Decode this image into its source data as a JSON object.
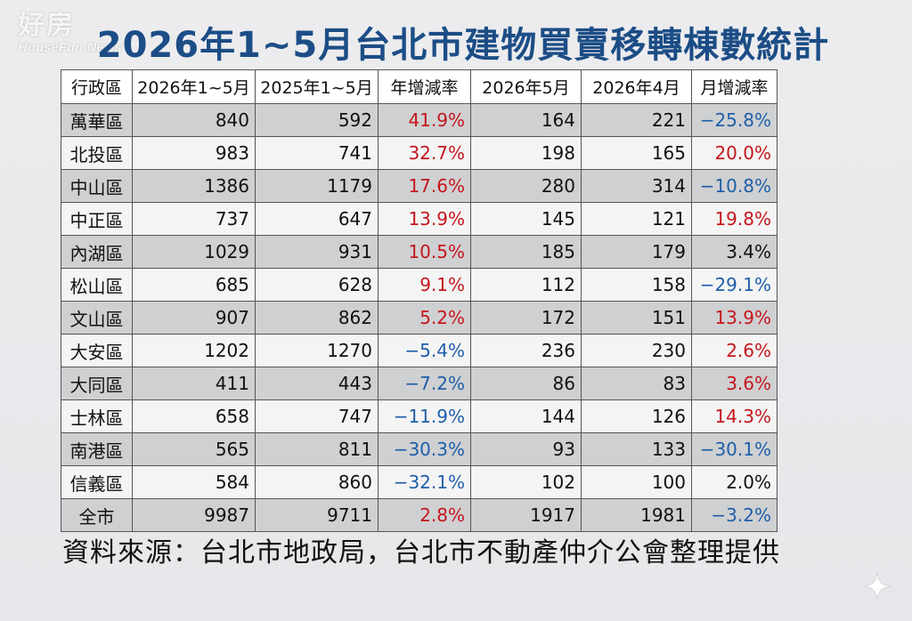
{
  "watermark": {
    "main": "好房",
    "sub": "HouseFun News"
  },
  "title": "2026年1~5月台北市建物買賣移轉棟數統計",
  "source": "資料來源：台北市地政局，台北市不動產仲介公會整理提供",
  "colors": {
    "title": "#1c4d86",
    "increase": "#c4161c",
    "decrease": "#1f5fa8",
    "shaded_row": "#cfd0d2"
  },
  "chart_data": {
    "type": "table",
    "columns": [
      "行政區",
      "2026年1~5月",
      "2025年1~5月",
      "年增減率",
      "2026年5月",
      "2026年4月",
      "月增減率"
    ],
    "rows": [
      {
        "district": "萬華區",
        "y2026": "840",
        "y2025": "592",
        "yoy": "41.9%",
        "may": "164",
        "apr": "221",
        "mom": "−25.8%",
        "yoy_dir": "pos",
        "mom_dir": "neg"
      },
      {
        "district": "北投區",
        "y2026": "983",
        "y2025": "741",
        "yoy": "32.7%",
        "may": "198",
        "apr": "165",
        "mom": "20.0%",
        "yoy_dir": "pos",
        "mom_dir": "pos"
      },
      {
        "district": "中山區",
        "y2026": "1386",
        "y2025": "1179",
        "yoy": "17.6%",
        "may": "280",
        "apr": "314",
        "mom": "−10.8%",
        "yoy_dir": "pos",
        "mom_dir": "neg"
      },
      {
        "district": "中正區",
        "y2026": "737",
        "y2025": "647",
        "yoy": "13.9%",
        "may": "145",
        "apr": "121",
        "mom": "19.8%",
        "yoy_dir": "pos",
        "mom_dir": "pos"
      },
      {
        "district": "內湖區",
        "y2026": "1029",
        "y2025": "931",
        "yoy": "10.5%",
        "may": "185",
        "apr": "179",
        "mom": "3.4%",
        "yoy_dir": "pos",
        "mom_dir": "neu"
      },
      {
        "district": "松山區",
        "y2026": "685",
        "y2025": "628",
        "yoy": "9.1%",
        "may": "112",
        "apr": "158",
        "mom": "−29.1%",
        "yoy_dir": "pos",
        "mom_dir": "neg"
      },
      {
        "district": "文山區",
        "y2026": "907",
        "y2025": "862",
        "yoy": "5.2%",
        "may": "172",
        "apr": "151",
        "mom": "13.9%",
        "yoy_dir": "pos",
        "mom_dir": "pos"
      },
      {
        "district": "大安區",
        "y2026": "1202",
        "y2025": "1270",
        "yoy": "−5.4%",
        "may": "236",
        "apr": "230",
        "mom": "2.6%",
        "yoy_dir": "neg",
        "mom_dir": "pos"
      },
      {
        "district": "大同區",
        "y2026": "411",
        "y2025": "443",
        "yoy": "−7.2%",
        "may": "86",
        "apr": "83",
        "mom": "3.6%",
        "yoy_dir": "neg",
        "mom_dir": "pos"
      },
      {
        "district": "士林區",
        "y2026": "658",
        "y2025": "747",
        "yoy": "−11.9%",
        "may": "144",
        "apr": "126",
        "mom": "14.3%",
        "yoy_dir": "neg",
        "mom_dir": "pos"
      },
      {
        "district": "南港區",
        "y2026": "565",
        "y2025": "811",
        "yoy": "−30.3%",
        "may": "93",
        "apr": "133",
        "mom": "−30.1%",
        "yoy_dir": "neg",
        "mom_dir": "neg"
      },
      {
        "district": "信義區",
        "y2026": "584",
        "y2025": "860",
        "yoy": "−32.1%",
        "may": "102",
        "apr": "100",
        "mom": "2.0%",
        "yoy_dir": "neg",
        "mom_dir": "neu"
      },
      {
        "district": "全市",
        "y2026": "9987",
        "y2025": "9711",
        "yoy": "2.8%",
        "may": "1917",
        "apr": "1981",
        "mom": "−3.2%",
        "yoy_dir": "pos",
        "mom_dir": "neg"
      }
    ]
  }
}
